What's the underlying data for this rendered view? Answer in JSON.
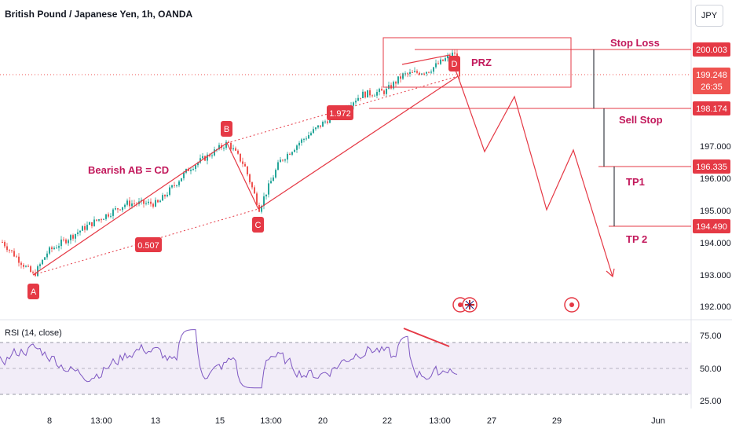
{
  "header": {
    "symbol_title": "British Pound / Japanese Yen, 1h, OANDA",
    "currency": "JPY"
  },
  "price_axis": {
    "ticks": [
      "197.000",
      "196.000",
      "195.000",
      "194.000",
      "193.000",
      "192.000"
    ]
  },
  "price_tags": {
    "stop_loss": "200.003",
    "current": "199.248",
    "countdown": "26:35",
    "sell_stop": "198.174",
    "tp1": "196.335",
    "tp2": "194.490"
  },
  "annotations": {
    "prz": "PRZ",
    "stop_loss": "Stop Loss",
    "sell_stop": "Sell Stop",
    "tp1": "TP1",
    "tp2": "TP 2",
    "pattern": "Bearish AB = CD",
    "point_a": "A",
    "point_b": "B",
    "point_c": "C",
    "point_d": "D",
    "ratio_bc": "0.507",
    "ratio_cd": "1.972"
  },
  "time_axis": {
    "ticks": [
      "8",
      "13:00",
      "13",
      "15",
      "13:00",
      "20",
      "22",
      "13:00",
      "27",
      "29",
      "Jun"
    ]
  },
  "rsi": {
    "title": "RSI (14, close)",
    "ticks": [
      "75.00",
      "50.00",
      "25.00"
    ],
    "upper": 70,
    "lower": 30
  },
  "colors": {
    "candle_up": "#26a69a",
    "candle_down": "#ef5350",
    "annotation": "#e53945",
    "rsi_line": "#7e57c2"
  },
  "chart_data": {
    "type": "candlestick",
    "title": "British Pound / Japanese Yen, 1h, OANDA",
    "ylim": [
      191.6,
      201.0
    ],
    "levels": {
      "stop_loss": 200.003,
      "current": 199.248,
      "sell_stop": 198.174,
      "tp1": 196.335,
      "tp2": 194.49
    },
    "abcd": [
      {
        "point": "A",
        "price": 192.95
      },
      {
        "point": "B",
        "price": 197.1
      },
      {
        "point": "C",
        "price": 195.05
      },
      {
        "point": "D",
        "price": 199.9
      }
    ],
    "ratios": {
      "BC": 0.507,
      "CD": 1.972
    },
    "rsi_range": [
      20,
      85
    ]
  }
}
